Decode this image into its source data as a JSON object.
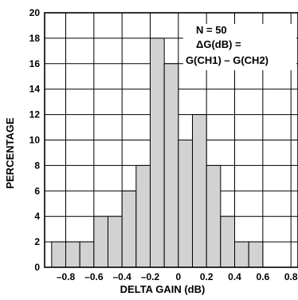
{
  "chart_data": {
    "type": "bar",
    "title": "",
    "xlabel": "DELTA GAIN (dB)",
    "ylabel": "PERCENTAGE",
    "xlim": [
      -0.95,
      0.85
    ],
    "ylim": [
      0,
      20
    ],
    "x_ticks": [
      -0.8,
      -0.6,
      -0.4,
      -0.2,
      0,
      0.2,
      0.4,
      0.6,
      0.8
    ],
    "x_tick_labels": [
      "–0.8",
      "–0.6",
      "–0.4",
      "–0.2",
      "0",
      "0.2",
      "0.4",
      "0.6",
      "0.8"
    ],
    "y_ticks": [
      0,
      2,
      4,
      6,
      8,
      10,
      12,
      14,
      16,
      18,
      20
    ],
    "y_tick_labels": [
      "0",
      "2",
      "4",
      "6",
      "8",
      "10",
      "12",
      "14",
      "16",
      "18",
      "20"
    ],
    "grid": true,
    "bin_width": 0.1,
    "bins": [
      {
        "center": -0.85,
        "value": 2
      },
      {
        "center": -0.75,
        "value": 2
      },
      {
        "center": -0.65,
        "value": 2
      },
      {
        "center": -0.55,
        "value": 4
      },
      {
        "center": -0.45,
        "value": 4
      },
      {
        "center": -0.35,
        "value": 6
      },
      {
        "center": -0.25,
        "value": 8
      },
      {
        "center": -0.15,
        "value": 18
      },
      {
        "center": -0.05,
        "value": 16
      },
      {
        "center": 0.05,
        "value": 10
      },
      {
        "center": 0.15,
        "value": 12
      },
      {
        "center": 0.25,
        "value": 8
      },
      {
        "center": 0.35,
        "value": 4
      },
      {
        "center": 0.45,
        "value": 2
      },
      {
        "center": 0.55,
        "value": 2
      },
      {
        "center": 0.65,
        "value": 0
      }
    ],
    "annotations": [
      "N = 50",
      "ΔG(dB) =",
      "G(CH1) – G(CH2)"
    ],
    "colors": {
      "bar_fill": "#d2d2d2",
      "line": "#000000",
      "background": "#ffffff"
    }
  }
}
